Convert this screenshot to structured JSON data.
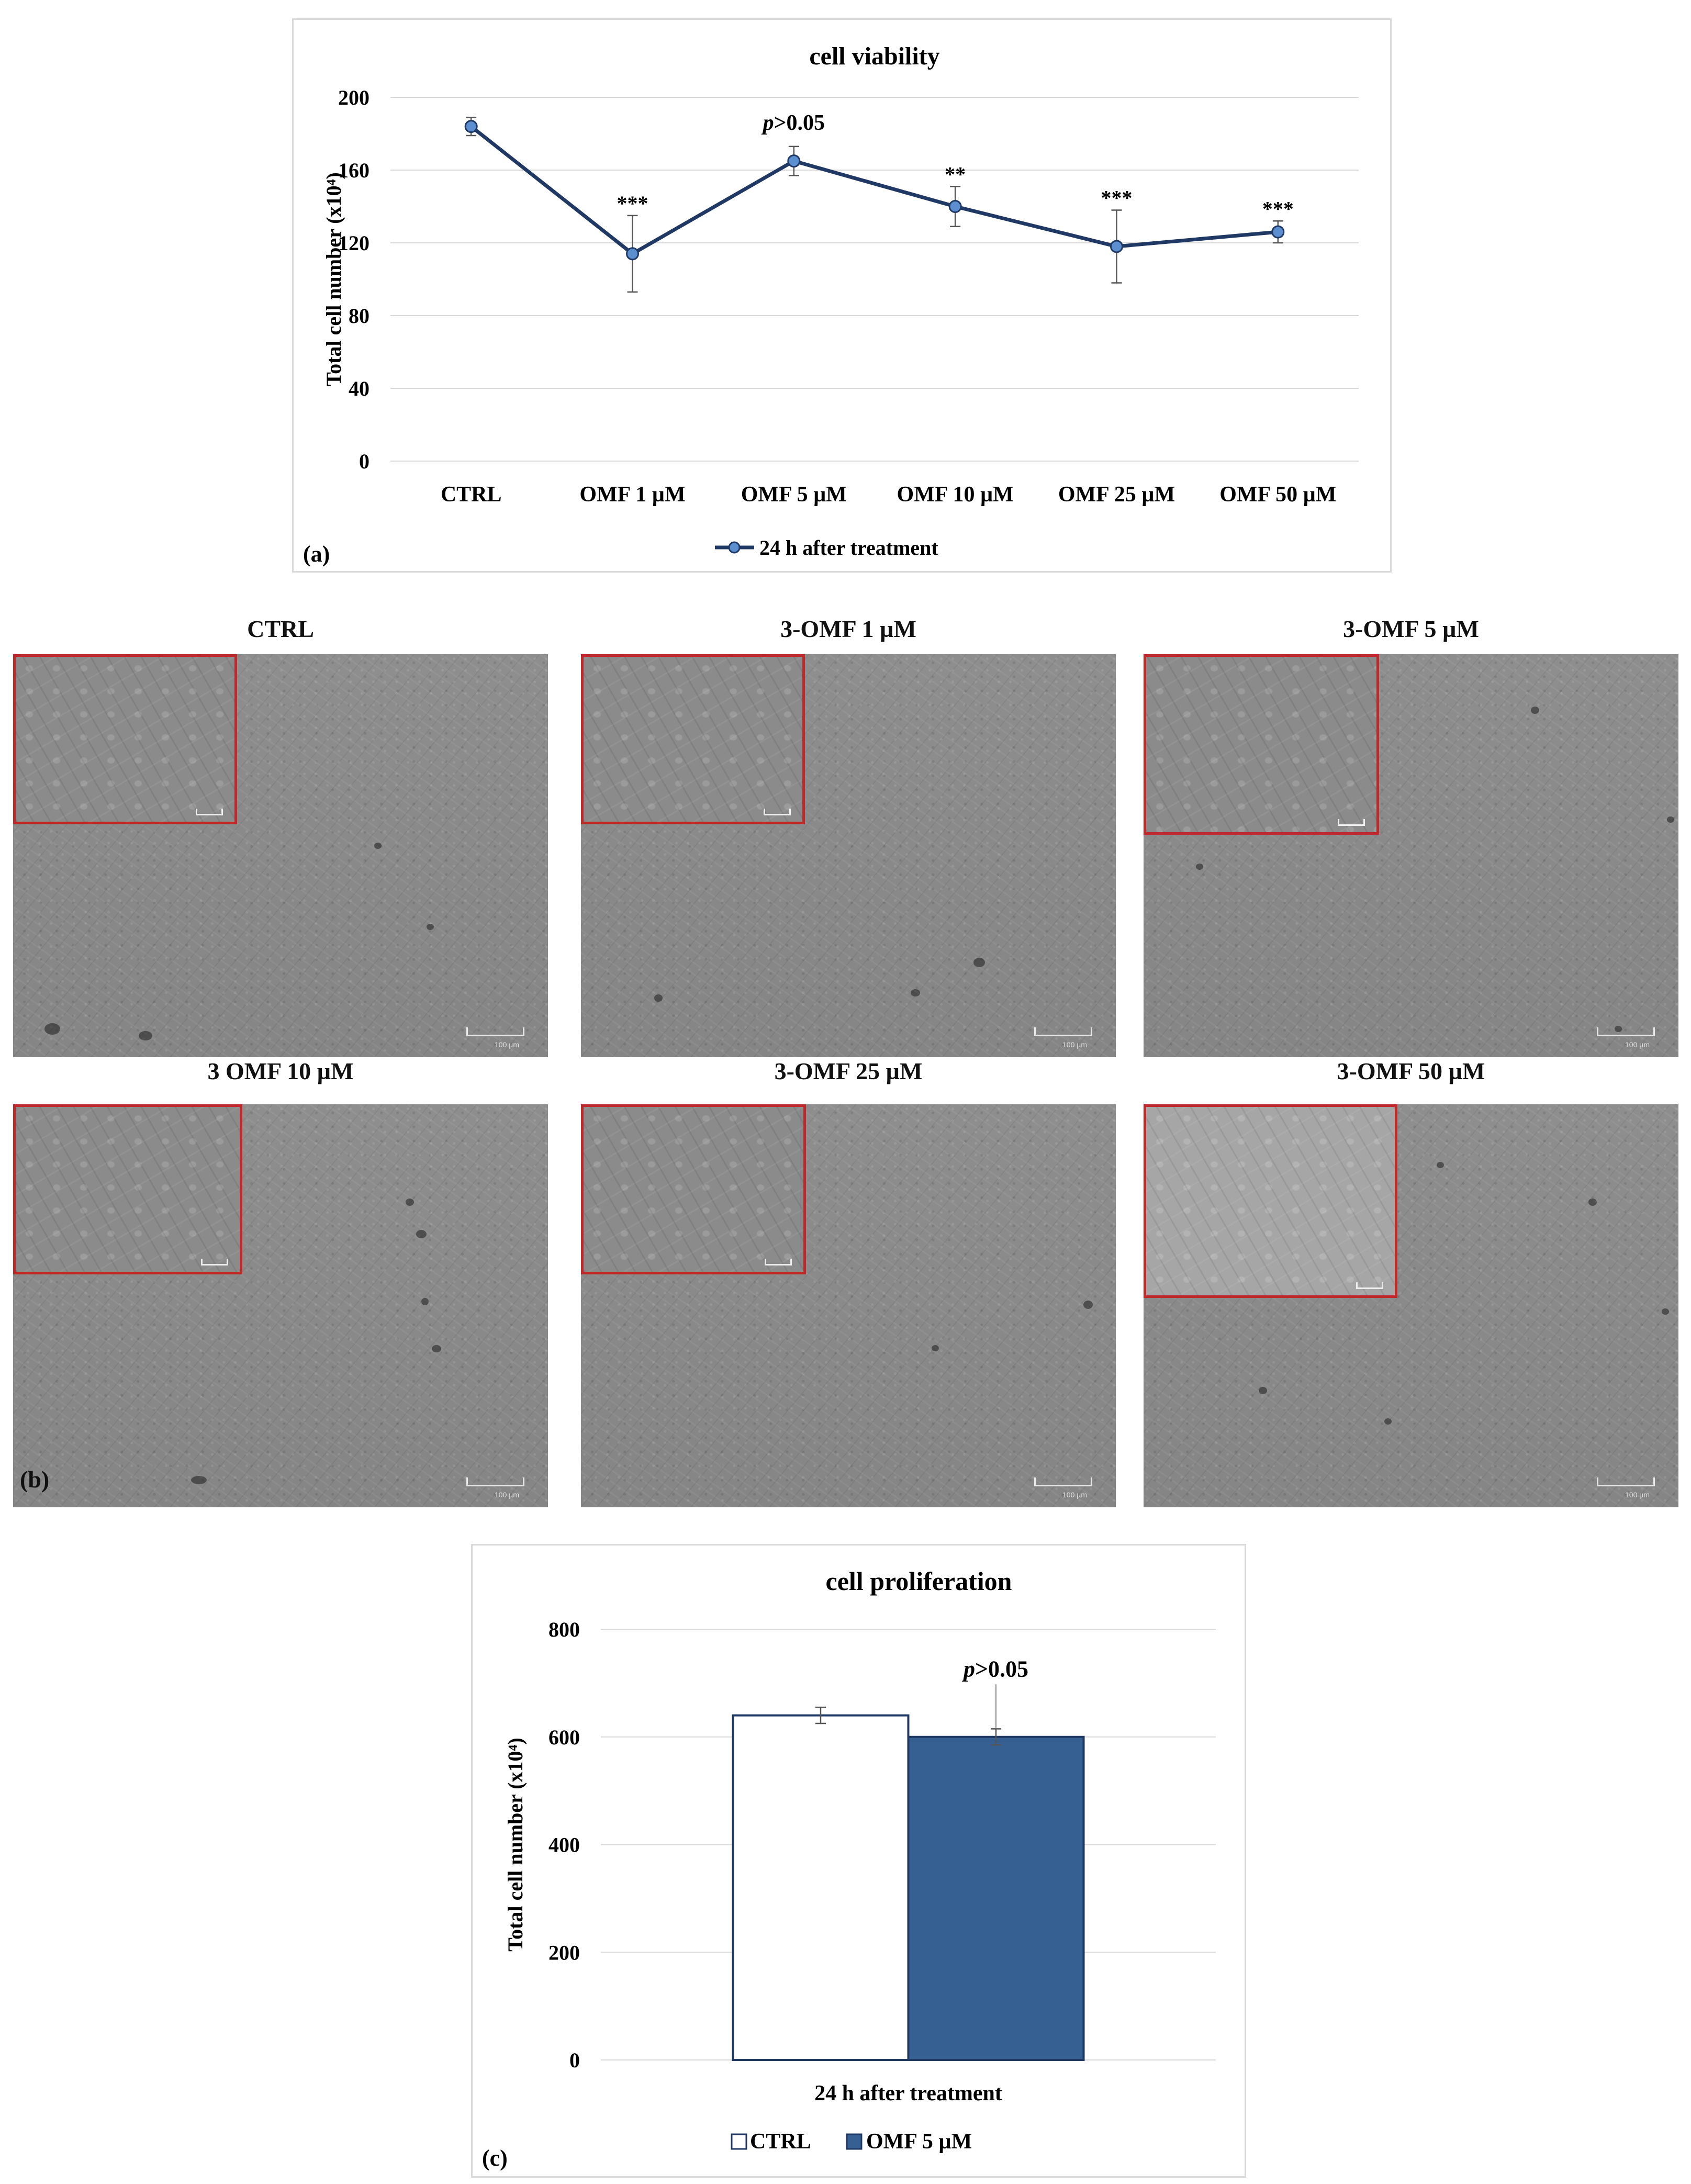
{
  "chart_data": [
    {
      "type": "line",
      "title": "cell viability",
      "ylabel": "Total cell number (x10⁴)",
      "ylim": [
        0,
        200
      ],
      "yticks": [
        0,
        40,
        80,
        120,
        160,
        200
      ],
      "categories": [
        "CTRL",
        "OMF 1 µM",
        "OMF 5 µM",
        "OMF 10 µM",
        "OMF 25 µM",
        "OMF 50 µM"
      ],
      "series": [
        {
          "name": "24 h after treatment",
          "color": "#1f3864",
          "marker_color": "#5b8fd0",
          "values": [
            184,
            114,
            165,
            140,
            118,
            126
          ],
          "error": [
            5,
            21,
            8,
            11,
            20,
            6
          ]
        }
      ],
      "annotations": [
        "",
        "***",
        "p>0.05",
        "**",
        "***",
        "***"
      ],
      "legend": "bottom",
      "panel_label": "(a)",
      "grid": true
    },
    {
      "type": "bar",
      "title": "cell proliferation",
      "ylabel": "Total cell number (x10⁴)",
      "ylim": [
        0,
        800
      ],
      "yticks": [
        0,
        200,
        400,
        600,
        800
      ],
      "categories": [
        "24 h after treatment"
      ],
      "series": [
        {
          "name": "CTRL",
          "color": "#ffffff",
          "values": [
            640
          ],
          "error": [
            15
          ]
        },
        {
          "name": "OMF 5 µM",
          "color": "#376092",
          "values": [
            600
          ],
          "error": [
            15
          ]
        }
      ],
      "annotations": [
        "",
        "p>0.05"
      ],
      "legend": "bottom",
      "panel_label": "(c)",
      "grid": true
    }
  ],
  "micrographs": {
    "panel_label": "(b)",
    "items": [
      {
        "title": "CTRL",
        "scale": "100 µm"
      },
      {
        "title": "3-OMF 1 µM",
        "scale": "100 µm"
      },
      {
        "title": "3-OMF 5 µM",
        "scale": "100 µm"
      },
      {
        "title": "3 OMF 10 µM",
        "scale": "100 µm"
      },
      {
        "title": "3-OMF 25 µM",
        "scale": "100 µm"
      },
      {
        "title": "3-OMF 50 µM",
        "scale": "100 µm"
      }
    ]
  }
}
